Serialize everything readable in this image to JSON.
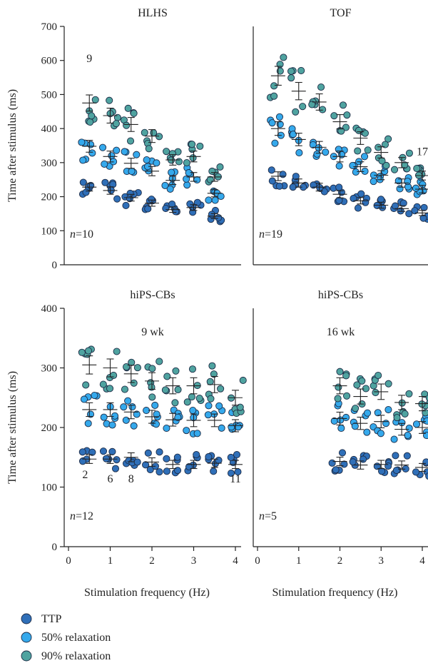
{
  "colors": {
    "TTP": "#2f6fb8",
    "50% relaxation": "#35a9ec",
    "90% relaxation": "#4fa3a0"
  },
  "legend": [
    "TTP",
    "50% relaxation",
    "90% relaxation"
  ],
  "chart_data": [
    {
      "type": "scatter",
      "title": "HLHS",
      "subtitle": "",
      "n_label": "n=10",
      "ylabel": "Time after stimulus (ms)",
      "xlabel": "",
      "ylim": [
        0,
        700
      ],
      "yticks": [
        0,
        100,
        200,
        300,
        400,
        500,
        600,
        700
      ],
      "xlim": [
        0,
        4
      ],
      "xticks": [],
      "x": [
        0.5,
        1,
        1.5,
        2,
        2.5,
        3,
        3.5
      ],
      "series": [
        {
          "name": "TTP",
          "values": [
            228,
            218,
            197,
            181,
            162,
            168,
            143
          ]
        },
        {
          "name": "50% relaxation",
          "values": [
            348,
            318,
            298,
            275,
            248,
            258,
            210
          ]
        },
        {
          "name": "90% relaxation",
          "values": [
            475,
            438,
            412,
            378,
            308,
            318,
            258
          ]
        }
      ],
      "annotations": [
        {
          "text": "9",
          "x": 0.5,
          "y": 595
        }
      ]
    },
    {
      "type": "scatter",
      "title": "TOF",
      "subtitle": "",
      "n_label": "n=19",
      "ylabel": "",
      "xlabel": "",
      "ylim": [
        0,
        700
      ],
      "yticks": [],
      "xlim": [
        0,
        4
      ],
      "xticks": [],
      "x": [
        0.5,
        1,
        1.5,
        2,
        2.5,
        3,
        3.5,
        4
      ],
      "series": [
        {
          "name": "TTP",
          "values": [
            260,
            240,
            228,
            207,
            188,
            175,
            165,
            152
          ]
        },
        {
          "name": "50% relaxation",
          "values": [
            400,
            368,
            345,
            318,
            288,
            263,
            240,
            222
          ]
        },
        {
          "name": "90% relaxation",
          "values": [
            555,
            510,
            478,
            420,
            372,
            330,
            300,
            262
          ]
        }
      ],
      "annotations": [
        {
          "text": "17",
          "x": 4,
          "y": 322
        }
      ]
    },
    {
      "type": "scatter",
      "title": "hiPS-CBs",
      "subtitle": "9 wk",
      "n_label": "n=12",
      "ylabel": "Time after stimulus (ms)",
      "xlabel": "Stimulation frequency (Hz)",
      "ylim": [
        0,
        400
      ],
      "yticks": [
        0,
        100,
        200,
        300,
        400
      ],
      "xlim": [
        0,
        4
      ],
      "xticks": [
        0,
        1,
        2,
        3,
        4
      ],
      "x": [
        0.5,
        1,
        1.5,
        2,
        2.5,
        3,
        3.5,
        4
      ],
      "series": [
        {
          "name": "TTP",
          "values": [
            147,
            147,
            150,
            142,
            138,
            138,
            140,
            138
          ]
        },
        {
          "name": "50% relaxation",
          "values": [
            230,
            230,
            226,
            218,
            213,
            212,
            212,
            203
          ]
        },
        {
          "name": "90% relaxation",
          "values": [
            305,
            300,
            290,
            278,
            270,
            270,
            272,
            250
          ]
        }
      ],
      "annotations": [
        {
          "text": "2",
          "x": 0.4,
          "y": 115
        },
        {
          "text": "6",
          "x": 1,
          "y": 108
        },
        {
          "text": "8",
          "x": 1.5,
          "y": 108
        },
        {
          "text": "11",
          "x": 4,
          "y": 108
        }
      ]
    },
    {
      "type": "scatter",
      "title": "hiPS-CBs",
      "subtitle": "16 wk",
      "n_label": "n=5",
      "ylabel": "",
      "xlabel": "Stimulation frequency (Hz)",
      "ylim": [
        0,
        400
      ],
      "yticks": [],
      "xlim": [
        0,
        4
      ],
      "xticks": [
        0,
        1,
        2,
        3,
        4
      ],
      "x": [
        2,
        2.5,
        3,
        3.5,
        4
      ],
      "series": [
        {
          "name": "TTP",
          "values": [
            143,
            137,
            138,
            137,
            133
          ]
        },
        {
          "name": "50% relaxation",
          "values": [
            215,
            207,
            210,
            197,
            200
          ]
        },
        {
          "name": "90% relaxation",
          "values": [
            270,
            252,
            260,
            242,
            240
          ]
        }
      ],
      "annotations": []
    }
  ]
}
